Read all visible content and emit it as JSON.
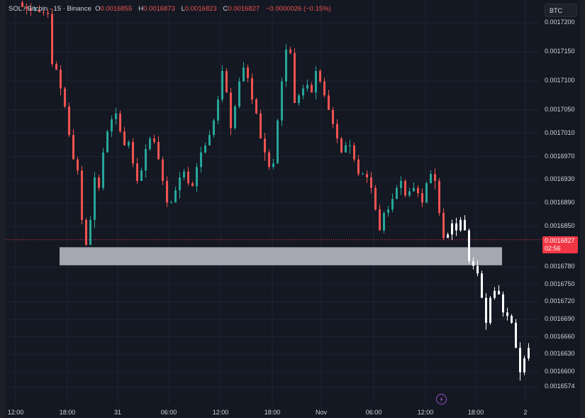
{
  "header": {
    "symbol": "SOL / Bitcoin · 15 · Binance",
    "o_label": "O",
    "o": "0.0016855",
    "h_label": "H",
    "h": "0.0016873",
    "l_label": "L",
    "l": "0.0016823",
    "c_label": "C",
    "c": "0.0016827",
    "change": "−0.0000026 (−0.15%)"
  },
  "currency_button": "BTC",
  "last_price": {
    "price": "0.0016827",
    "countdown": "02:56"
  },
  "colors": {
    "up": "#26a69a",
    "down": "#ef5350",
    "projection": "#ffffff",
    "zone": "#b2b5be",
    "background": "#141823"
  },
  "icons": {
    "event": "lightning-icon"
  },
  "chart_data": {
    "type": "candlestick",
    "interval": "15",
    "grid": true,
    "y_ticks": [
      "0.0017200",
      "0.0017150",
      "0.0017100",
      "0.0017050",
      "0.0017010",
      "0.0016970",
      "0.0016930",
      "0.0016890",
      "0.0016850",
      "0.0016780",
      "0.0016750",
      "0.0016720",
      "0.0016690",
      "0.0016660",
      "0.0016630",
      "0.0016600",
      "0.0016574"
    ],
    "x_ticks": [
      "12:00",
      "18:00",
      "31",
      "06:00",
      "12:00",
      "18:00",
      "Nov",
      "06:00",
      "12:00",
      "18:00",
      "2"
    ],
    "support_zone": [
      0.0016783,
      0.0016814
    ],
    "projection_start_index": 100,
    "closes": [
      0.0017227,
      0.0017224,
      0.0017221,
      0.0017222,
      0.0017218,
      0.0017217,
      0.0017215,
      0.0017129,
      0.0017119,
      0.0017087,
      0.0017056,
      0.0017007,
      0.0016965,
      0.0016946,
      0.0016861,
      0.0016818,
      0.0016861,
      0.0016934,
      0.0016916,
      0.0016977,
      0.0017013,
      0.0017034,
      0.0017044,
      0.0017013,
      0.0016989,
      0.0016995,
      0.0016958,
      0.0016928,
      0.0016946,
      0.0016983,
      0.0017001,
      0.0016995,
      0.0016965,
      0.0016928,
      0.0016891,
      0.0016891,
      0.0016912,
      0.0016934,
      0.0016944,
      0.0016924,
      0.0016919,
      0.0016952,
      0.0016977,
      0.0016989,
      0.0017007,
      0.0017032,
      0.0017068,
      0.0017117,
      0.001708,
      0.0017019,
      0.0017056,
      0.0017099,
      0.0017123,
      0.0017105,
      0.0017068,
      0.0017044,
      0.0017001,
      0.0016977,
      0.0016952,
      0.0016958,
      0.0017032,
      0.0017099,
      0.0017154,
      0.0017148,
      0.0017062,
      0.0017075,
      0.0017087,
      0.0017093,
      0.001708,
      0.0017117,
      0.0017099,
      0.0017075,
      0.001705,
      0.0017026,
      0.0017001,
      0.0016977,
      0.0016989,
      0.0016989,
      0.0016965,
      0.001694,
      0.001694,
      0.0016934,
      0.0016916,
      0.0016879,
      0.0016843,
      0.0016873,
      0.0016879,
      0.0016897,
      0.0016916,
      0.0016928,
      0.0016903,
      0.001691,
      0.0016916,
      0.0016907,
      0.0016891,
      0.0016924,
      0.001694,
      0.0016928,
      0.0016873,
      0.001683,
      0.0016836,
      0.0016855,
      0.0016843,
      0.0016861,
      0.0016843,
      0.001679,
      0.0016782,
      0.0016769,
      0.0016727,
      0.0016684,
      0.0016727,
      0.0016739,
      0.0016733,
      0.0016702,
      0.0016696,
      0.0016684,
      0.0016641,
      0.0016599,
      0.0016623,
      0.0016641
    ]
  }
}
